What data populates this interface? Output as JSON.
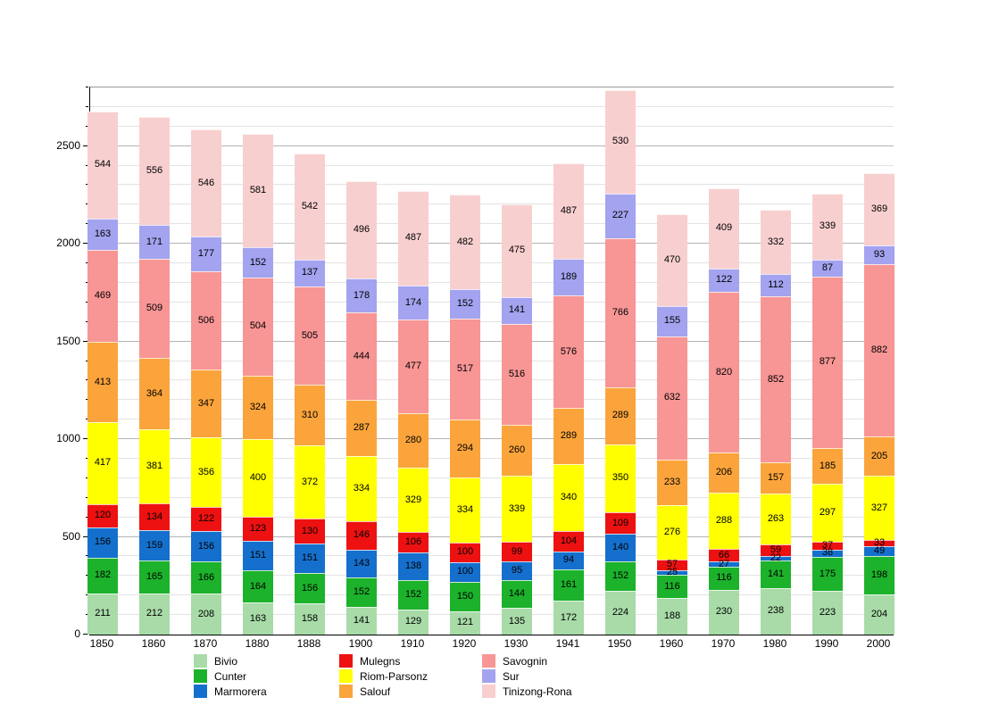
{
  "chart_data": {
    "type": "bar",
    "stacked": true,
    "title": "",
    "xlabel": "",
    "ylabel": "",
    "ylim": [
      0,
      2800
    ],
    "yticks": [
      0,
      500,
      1000,
      1500,
      2000,
      2500
    ],
    "grid": "horizontal, minor every 100, major every 500",
    "legend_position": "bottom",
    "categories": [
      "1850",
      "1860",
      "1870",
      "1880",
      "1888",
      "1900",
      "1910",
      "1920",
      "1930",
      "1941",
      "1950",
      "1960",
      "1970",
      "1980",
      "1990",
      "2000"
    ],
    "series": [
      {
        "name": "Bivio",
        "color": "#a8dba8",
        "values": [
          211,
          212,
          208,
          163,
          158,
          141,
          129,
          121,
          135,
          172,
          224,
          188,
          230,
          238,
          223,
          204
        ]
      },
      {
        "name": "Cunter",
        "color": "#1cb22b",
        "values": [
          182,
          165,
          166,
          164,
          156,
          152,
          152,
          150,
          144,
          161,
          152,
          116,
          116,
          141,
          175,
          198
        ]
      },
      {
        "name": "Marmorera",
        "color": "#1570cd",
        "values": [
          156,
          159,
          156,
          151,
          151,
          143,
          138,
          100,
          95,
          94,
          140,
          25,
          27,
          22,
          38,
          49
        ]
      },
      {
        "name": "Mulegns",
        "color": "#ee1111",
        "values": [
          120,
          134,
          122,
          123,
          130,
          146,
          106,
          100,
          99,
          104,
          109,
          57,
          66,
          59,
          37,
          33
        ]
      },
      {
        "name": "Riom-Parsonz",
        "color": "#ffff00",
        "values": [
          417,
          381,
          356,
          400,
          372,
          334,
          329,
          334,
          339,
          340,
          350,
          276,
          288,
          263,
          297,
          327
        ]
      },
      {
        "name": "Salouf",
        "color": "#fba43c",
        "values": [
          413,
          364,
          347,
          324,
          310,
          287,
          280,
          294,
          260,
          289,
          289,
          233,
          206,
          157,
          185,
          205
        ]
      },
      {
        "name": "Savognin",
        "color": "#f89595",
        "values": [
          469,
          509,
          506,
          504,
          505,
          444,
          477,
          517,
          516,
          576,
          766,
          632,
          820,
          852,
          877,
          882
        ]
      },
      {
        "name": "Sur",
        "color": "#a3a3f0",
        "values": [
          163,
          171,
          177,
          152,
          137,
          178,
          174,
          152,
          141,
          189,
          227,
          155,
          122,
          112,
          87,
          93
        ]
      },
      {
        "name": "Tinizong-Rona",
        "color": "#f8cfcf",
        "values": [
          544,
          556,
          546,
          581,
          542,
          496,
          487,
          482,
          475,
          487,
          530,
          470,
          409,
          332,
          339,
          369
        ]
      }
    ]
  },
  "legend": {
    "columns": [
      [
        "Bivio",
        "Cunter",
        "Marmorera"
      ],
      [
        "Mulegns",
        "Riom-Parsonz",
        "Salouf"
      ],
      [
        "Savognin",
        "Sur",
        "Tinizong-Rona"
      ]
    ]
  }
}
